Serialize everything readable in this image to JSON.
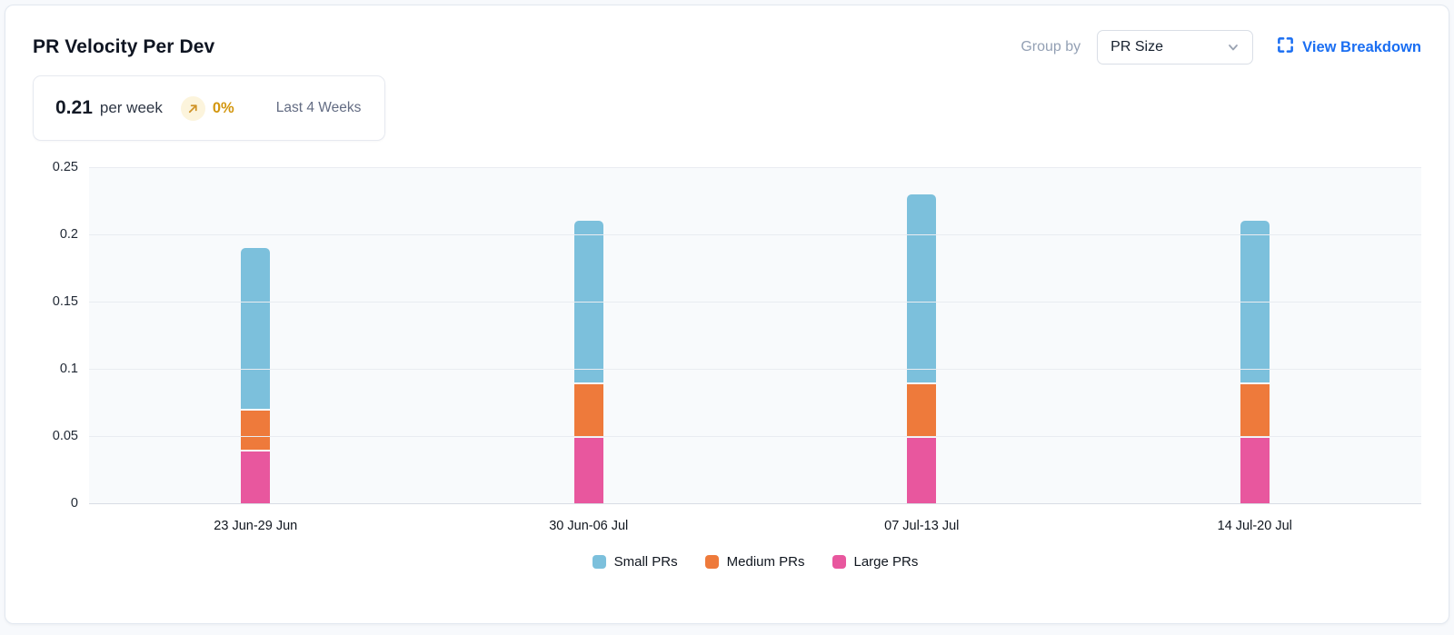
{
  "header": {
    "title": "PR Velocity Per Dev",
    "group_by_label": "Group by",
    "group_by_value": "PR Size",
    "view_breakdown_label": "View Breakdown"
  },
  "stat": {
    "value": "0.21",
    "unit": "per week",
    "trend_icon": "arrow-up-right-icon",
    "trend_pct": "0%",
    "period": "Last 4 Weeks"
  },
  "colors": {
    "small_prs": "#7CC0DC",
    "medium_prs": "#EE7A3B",
    "large_prs": "#E8579E",
    "link_blue": "#1A6EF2",
    "trend_amber": "#D3960E",
    "trend_badge_bg": "#FCF4DC",
    "plot_background": "#F8FAFC",
    "gridline": "#E9ECF1"
  },
  "chart_data": {
    "type": "bar",
    "stacked": true,
    "title": "PR Velocity Per Dev",
    "xlabel": "",
    "ylabel": "",
    "categories": [
      "23 Jun-29 Jun",
      "30 Jun-06 Jul",
      "07 Jul-13 Jul",
      "14 Jul-20 Jul"
    ],
    "series": [
      {
        "name": "Small PRs",
        "color": "#7CC0DC",
        "values": [
          0.12,
          0.12,
          0.14,
          0.12
        ]
      },
      {
        "name": "Medium PRs",
        "color": "#EE7A3B",
        "values": [
          0.03,
          0.04,
          0.04,
          0.04
        ]
      },
      {
        "name": "Large PRs",
        "color": "#E8579E",
        "values": [
          0.04,
          0.05,
          0.05,
          0.05
        ]
      }
    ],
    "stack_order_bottom_to_top": [
      "Large PRs",
      "Medium PRs",
      "Small PRs"
    ],
    "totals": [
      0.19,
      0.21,
      0.23,
      0.21
    ],
    "ylim": [
      0,
      0.25
    ],
    "yticks": [
      "0.25",
      "0.2",
      "0.15",
      "0.1",
      "0.05",
      "0"
    ],
    "grid": true,
    "legend_position": "bottom"
  }
}
